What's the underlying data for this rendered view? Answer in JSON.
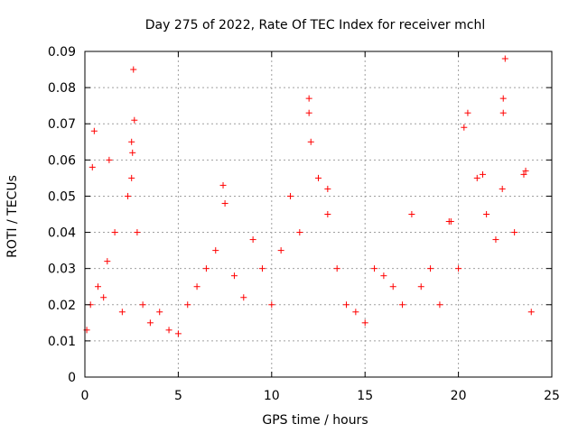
{
  "chart_data": {
    "type": "scatter",
    "title": "Day 275 of 2022, Rate Of TEC Index for receiver mchl",
    "xlabel": "GPS time / hours",
    "ylabel": "ROTI / TECUs",
    "xlim": [
      0,
      25
    ],
    "ylim": [
      0,
      0.09
    ],
    "x_ticks": [
      "0",
      "5",
      "10",
      "15",
      "20",
      "25"
    ],
    "y_ticks": [
      "0",
      "0.01",
      "0.02",
      "0.03",
      "0.04",
      "0.05",
      "0.06",
      "0.07",
      "0.08",
      "0.09"
    ],
    "grid": true,
    "marker": "+",
    "marker_color": "#ff0000",
    "series": [
      {
        "x": [
          0.1,
          0.3,
          0.5,
          0.7,
          1.0,
          1.3,
          1.6,
          2.0,
          2.3,
          2.5,
          2.6,
          2.8,
          3.1,
          3.5,
          4.0,
          4.5,
          5.0,
          5.5,
          6.0,
          6.5,
          7.0,
          7.5,
          8.0,
          8.5,
          9.0,
          9.5,
          10.0,
          10.5,
          11.0,
          11.5,
          12.0,
          12.5,
          13.0,
          13.5,
          14.0,
          14.5,
          15.0,
          15.5,
          16.0,
          16.5,
          17.0,
          17.5,
          18.0,
          18.5,
          19.0,
          19.5,
          20.0,
          20.5,
          21.0,
          21.5,
          22.0,
          22.5,
          23.0,
          23.5,
          23.9,
          0.4,
          1.2,
          2.5,
          7.4,
          12.0,
          12.1,
          13.0,
          19.6,
          20.3,
          21.3,
          22.4,
          22.4,
          23.6,
          2.65,
          2.55,
          22.35
        ],
        "y": [
          0.013,
          0.02,
          0.068,
          0.025,
          0.022,
          0.06,
          0.04,
          0.018,
          0.05,
          0.065,
          0.085,
          0.04,
          0.02,
          0.015,
          0.018,
          0.013,
          0.012,
          0.02,
          0.025,
          0.03,
          0.035,
          0.048,
          0.028,
          0.022,
          0.038,
          0.03,
          0.02,
          0.035,
          0.05,
          0.04,
          0.077,
          0.055,
          0.045,
          0.03,
          0.02,
          0.018,
          0.015,
          0.03,
          0.028,
          0.025,
          0.02,
          0.045,
          0.025,
          0.03,
          0.02,
          0.043,
          0.03,
          0.073,
          0.055,
          0.045,
          0.038,
          0.088,
          0.04,
          0.056,
          0.018,
          0.058,
          0.032,
          0.055,
          0.053,
          0.073,
          0.065,
          0.052,
          0.043,
          0.069,
          0.056,
          0.077,
          0.073,
          0.057,
          0.071,
          0.062,
          0.052
        ]
      }
    ]
  }
}
